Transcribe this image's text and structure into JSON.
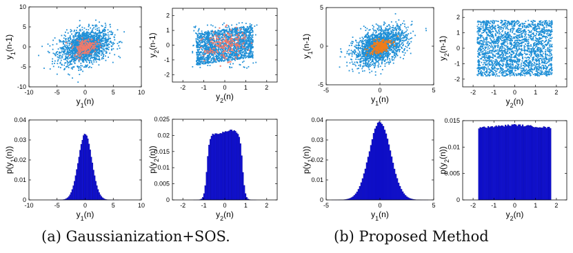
{
  "colors": {
    "scatter_main": "#1f8fd6",
    "scatter_orig_a": "#f07a6a",
    "scatter_orig_b": "#f07c1a",
    "hist_bar": "#1010d8"
  },
  "captions": {
    "a": "(a) Gaussianization+SOS.",
    "b": "(b) Proposed Method"
  },
  "chart_data": [
    {
      "id": "a-scatter-1",
      "type": "scatter",
      "xlabel": "y1(n)",
      "ylabel": "y1(n-1)",
      "xlim": [
        -10,
        10
      ],
      "ylim": [
        -10,
        10
      ],
      "xticks": [
        "-10",
        "-5",
        "0",
        "5",
        "10"
      ],
      "yticks": [
        "-10",
        "-5",
        "0",
        "5",
        "10"
      ],
      "cloud": {
        "distribution": "gaussian",
        "sx": 2.2,
        "sy": 2.2,
        "corr": 0.3,
        "n": 1800
      },
      "overlay": {
        "distribution": "gaussian",
        "sx": 1.0,
        "sy": 1.0,
        "corr": 0.3,
        "n": 200
      }
    },
    {
      "id": "a-scatter-2",
      "type": "scatter",
      "xlabel": "y2(n)",
      "ylabel": "y2(n-1)",
      "xlim": [
        -2.5,
        2.5
      ],
      "ylim": [
        -2.5,
        2.5
      ],
      "xticks": [
        "-2",
        "-1",
        "0",
        "1",
        "2"
      ],
      "yticks": [
        "-2",
        "-1",
        "0",
        "1",
        "2"
      ],
      "cloud": {
        "distribution": "uniform",
        "lo": -1.35,
        "hi": 1.35,
        "corr": 0.2,
        "n": 1800
      },
      "overlay": {
        "distribution": "gaussian",
        "sx": 0.5,
        "sy": 0.5,
        "corr": 0.2,
        "n": 200
      }
    },
    {
      "id": "b-scatter-1",
      "type": "scatter",
      "xlabel": "y1(n)",
      "ylabel": "y1(n-1)",
      "xlim": [
        -5,
        5
      ],
      "ylim": [
        -5,
        5
      ],
      "xticks": [
        "-5",
        "0",
        "5"
      ],
      "yticks": [
        "-5",
        "0",
        "5"
      ],
      "cloud": {
        "distribution": "gaussian",
        "sx": 1.2,
        "sy": 1.2,
        "corr": 0.45,
        "n": 1800
      },
      "overlay": {
        "distribution": "gaussian",
        "sx": 0.5,
        "sy": 0.5,
        "corr": 0.45,
        "n": 220
      }
    },
    {
      "id": "b-scatter-2",
      "type": "scatter",
      "xlabel": "y2(n)",
      "ylabel": "y2(n-1)",
      "xlim": [
        -2.5,
        2.5
      ],
      "ylim": [
        -2.5,
        2.5
      ],
      "xticks": [
        "-2",
        "-1",
        "0",
        "1",
        "2"
      ],
      "yticks": [
        "-2",
        "-1",
        "0",
        "1",
        "2"
      ],
      "cloud": {
        "distribution": "uniform",
        "lo": -1.8,
        "hi": 1.8,
        "corr": 0,
        "n": 2200
      },
      "overlay": null
    },
    {
      "id": "a-hist-1",
      "type": "bar",
      "xlabel": "y1(n)",
      "ylabel": "p(y1(n))",
      "xlim": [
        -10,
        10
      ],
      "ylim": [
        0,
        0.04
      ],
      "xticks": [
        "-10",
        "-5",
        "0",
        "5",
        "10"
      ],
      "yticks": [
        "0",
        "0.01",
        "0.02",
        "0.03",
        "0.04"
      ],
      "density": {
        "shape": "gaussian",
        "mu": 0,
        "sigma": 1.2,
        "peak": 0.033,
        "range": [
          -6,
          6
        ],
        "bins": 60
      }
    },
    {
      "id": "a-hist-2",
      "type": "bar",
      "xlabel": "y2(n)",
      "ylabel": "p(y2(n))",
      "xlim": [
        -2.5,
        2.5
      ],
      "ylim": [
        0,
        0.025
      ],
      "xticks": [
        "-2",
        "-1",
        "0",
        "1",
        "2"
      ],
      "yticks": [
        "0",
        "0.005",
        "0.01",
        "0.015",
        "0.02",
        "0.025"
      ],
      "density": {
        "shape": "plateau",
        "mu": 0,
        "halfwidth": 0.85,
        "edge": 0.18,
        "peak": 0.0205,
        "bump": 0.001,
        "range": [
          -1.5,
          1.5
        ],
        "bins": 50
      }
    },
    {
      "id": "b-hist-1",
      "type": "bar",
      "xlabel": "y1(n)",
      "ylabel": "p(y1(n))",
      "xlim": [
        -5,
        5
      ],
      "ylim": [
        0,
        0.04
      ],
      "xticks": [
        "-5",
        "0",
        "5"
      ],
      "yticks": [
        "0",
        "0.01",
        "0.02",
        "0.03",
        "0.04"
      ],
      "density": {
        "shape": "gaussian",
        "mu": 0,
        "sigma": 1.0,
        "peak": 0.039,
        "range": [
          -4.5,
          4.5
        ],
        "bins": 70
      }
    },
    {
      "id": "b-hist-2",
      "type": "bar",
      "xlabel": "y2(n)",
      "ylabel": "p(y2(n))",
      "xlim": [
        -2.5,
        2.5
      ],
      "ylim": [
        0,
        0.015
      ],
      "xticks": [
        "-2",
        "-1",
        "0",
        "1",
        "2"
      ],
      "yticks": [
        "0",
        "0.005",
        "0.01",
        "0.015"
      ],
      "density": {
        "shape": "box",
        "lo": -1.75,
        "hi": 1.75,
        "peak": 0.0142,
        "range": [
          -1.75,
          1.75
        ],
        "bins": 55
      }
    }
  ]
}
